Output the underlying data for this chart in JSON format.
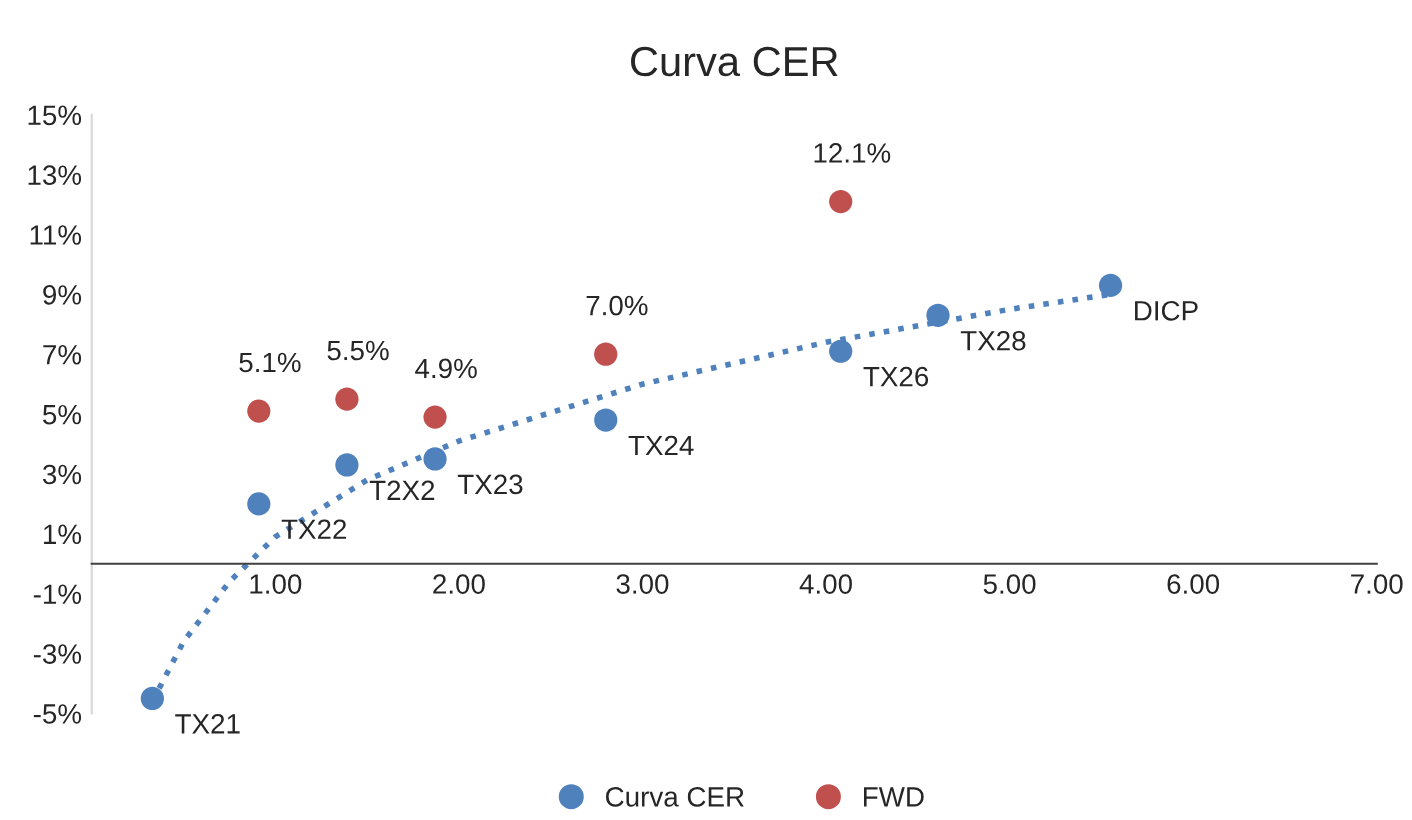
{
  "chart_data": {
    "type": "scatter",
    "title": "Curva CER",
    "xlim": [
      0,
      7
    ],
    "xticks": [
      {
        "value": 1,
        "label": "1.00"
      },
      {
        "value": 2,
        "label": "2.00"
      },
      {
        "value": 3,
        "label": "3.00"
      },
      {
        "value": 4,
        "label": "4.00"
      },
      {
        "value": 5,
        "label": "5.00"
      },
      {
        "value": 6,
        "label": "6.00"
      },
      {
        "value": 7,
        "label": "7.00"
      }
    ],
    "ylim": [
      -5,
      15
    ],
    "yticks": [
      {
        "value": -5,
        "label": "-5%"
      },
      {
        "value": -3,
        "label": "-3%"
      },
      {
        "value": -1,
        "label": "-1%"
      },
      {
        "value": 1,
        "label": "1%"
      },
      {
        "value": 3,
        "label": "3%"
      },
      {
        "value": 5,
        "label": "5%"
      },
      {
        "value": 7,
        "label": "7%"
      },
      {
        "value": 9,
        "label": "9%"
      },
      {
        "value": 11,
        "label": "11%"
      },
      {
        "value": 13,
        "label": "13%"
      },
      {
        "value": 15,
        "label": "15%"
      }
    ],
    "grid": false,
    "legend": "bottom",
    "marker": "circle",
    "series": [
      {
        "type": "line",
        "color": "#4f81bd",
        "line_style": "dotted",
        "marker": "none",
        "x": [
          0.33,
          0.5,
          0.75,
          1.0,
          1.5,
          2.0,
          3.0,
          4.0,
          5.0,
          5.55
        ],
        "values": [
          -4.6,
          -2.6,
          -0.6,
          0.9,
          2.8,
          4.1,
          6.0,
          7.4,
          8.5,
          9.0
        ]
      },
      {
        "name": "Curva CER",
        "color": "#4f81bd",
        "x": [
          0.33,
          0.91,
          1.39,
          1.87,
          2.8,
          4.08,
          4.61,
          5.55
        ],
        "values": [
          -4.5,
          2.0,
          3.3,
          3.5,
          4.8,
          7.1,
          8.3,
          9.3
        ],
        "value_labels": [
          "TX21",
          "TX22",
          "T2X2",
          "TX23",
          "TX24",
          "TX26",
          "TX28",
          "DICP"
        ]
      },
      {
        "name": "FWD",
        "color": "#c0504d",
        "x": [
          0.91,
          1.39,
          1.87,
          2.8,
          4.08
        ],
        "values": [
          5.1,
          5.5,
          4.9,
          7.0,
          12.1
        ],
        "value_labels": [
          "5.1%",
          "5.5%",
          "4.9%",
          "7.0%",
          "12.1%"
        ]
      }
    ]
  }
}
